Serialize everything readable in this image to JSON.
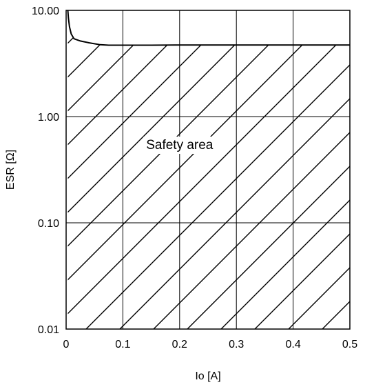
{
  "chart_data": {
    "type": "line",
    "title": "",
    "xlabel": "Io [A]",
    "ylabel": "ESR [Ω]",
    "x_scale": "linear",
    "y_scale": "log",
    "xlim": [
      0,
      0.5
    ],
    "ylim": [
      0.01,
      10
    ],
    "grid": true,
    "x_ticks": [
      {
        "value": 0,
        "label": "0"
      },
      {
        "value": 0.1,
        "label": "0.1"
      },
      {
        "value": 0.2,
        "label": "0.2"
      },
      {
        "value": 0.3,
        "label": "0.3"
      },
      {
        "value": 0.4,
        "label": "0.4"
      },
      {
        "value": 0.5,
        "label": "0.5"
      }
    ],
    "y_ticks": [
      {
        "value": 0.01,
        "label": "0.01"
      },
      {
        "value": 0.1,
        "label": "0.10"
      },
      {
        "value": 1,
        "label": "1.00"
      },
      {
        "value": 10,
        "label": "10.00"
      }
    ],
    "series": [
      {
        "x": [
          0.003,
          0.004,
          0.006,
          0.009,
          0.014,
          0.025,
          0.04,
          0.06,
          0.075,
          0.1,
          0.15,
          0.2,
          0.3,
          0.4,
          0.5
        ],
        "y": [
          10,
          8.5,
          7.0,
          6.0,
          5.4,
          5.15,
          4.95,
          4.75,
          4.7,
          4.7,
          4.7,
          4.72,
          4.72,
          4.72,
          4.72
        ]
      }
    ],
    "annotations": [
      {
        "text": "Safety area",
        "x": 0.2,
        "y": 0.55
      }
    ],
    "hatched_region": "below curve"
  }
}
